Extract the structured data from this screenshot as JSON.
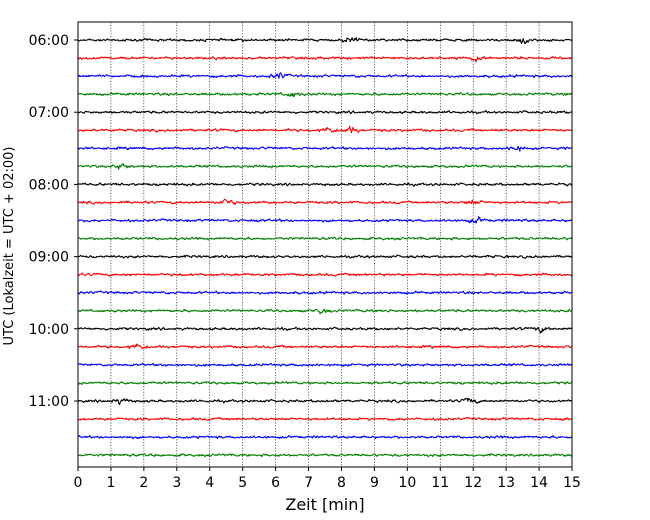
{
  "chart_data": {
    "type": "line",
    "title": "",
    "xlabel": "Zeit  [min]",
    "ylabel": "UTC (Lokalzeit = UTC + 02:00)",
    "xlim": [
      0,
      15
    ],
    "x_ticks": [
      "0",
      "1",
      "2",
      "3",
      "4",
      "5",
      "6",
      "7",
      "8",
      "9",
      "10",
      "11",
      "12",
      "13",
      "14",
      "15"
    ],
    "y_ticks": [
      "06:00",
      "07:00",
      "08:00",
      "09:00",
      "10:00",
      "11:00"
    ],
    "grid": "vertical dotted lines at each minute",
    "trace_interval_min": 15,
    "traces_per_hour": 4,
    "trace_count": 24,
    "first_trace_start": "06:00",
    "last_trace_start": "11:45",
    "colors": [
      "#000000",
      "#ff0000",
      "#0000ff",
      "#008000"
    ],
    "notable_events": [
      {
        "trace_start": "06:00",
        "minute": 8.3
      },
      {
        "trace_start": "06:00",
        "minute": 13.5
      },
      {
        "trace_start": "06:15",
        "minute": 12.1
      },
      {
        "trace_start": "06:30",
        "minute": 6.1
      },
      {
        "trace_start": "06:45",
        "minute": 6.5
      },
      {
        "trace_start": "07:15",
        "minute": 7.6
      },
      {
        "trace_start": "07:15",
        "minute": 8.3
      },
      {
        "trace_start": "07:30",
        "minute": 13.3
      },
      {
        "trace_start": "07:45",
        "minute": 1.3
      },
      {
        "trace_start": "08:15",
        "minute": 4.5
      },
      {
        "trace_start": "08:15",
        "minute": 12.0
      },
      {
        "trace_start": "08:30",
        "minute": 12.1
      },
      {
        "trace_start": "09:45",
        "minute": 7.4
      },
      {
        "trace_start": "10:00",
        "minute": 14.1
      },
      {
        "trace_start": "10:15",
        "minute": 1.8
      },
      {
        "trace_start": "11:00",
        "minute": 1.3
      },
      {
        "trace_start": "11:00",
        "minute": 11.9
      }
    ]
  }
}
